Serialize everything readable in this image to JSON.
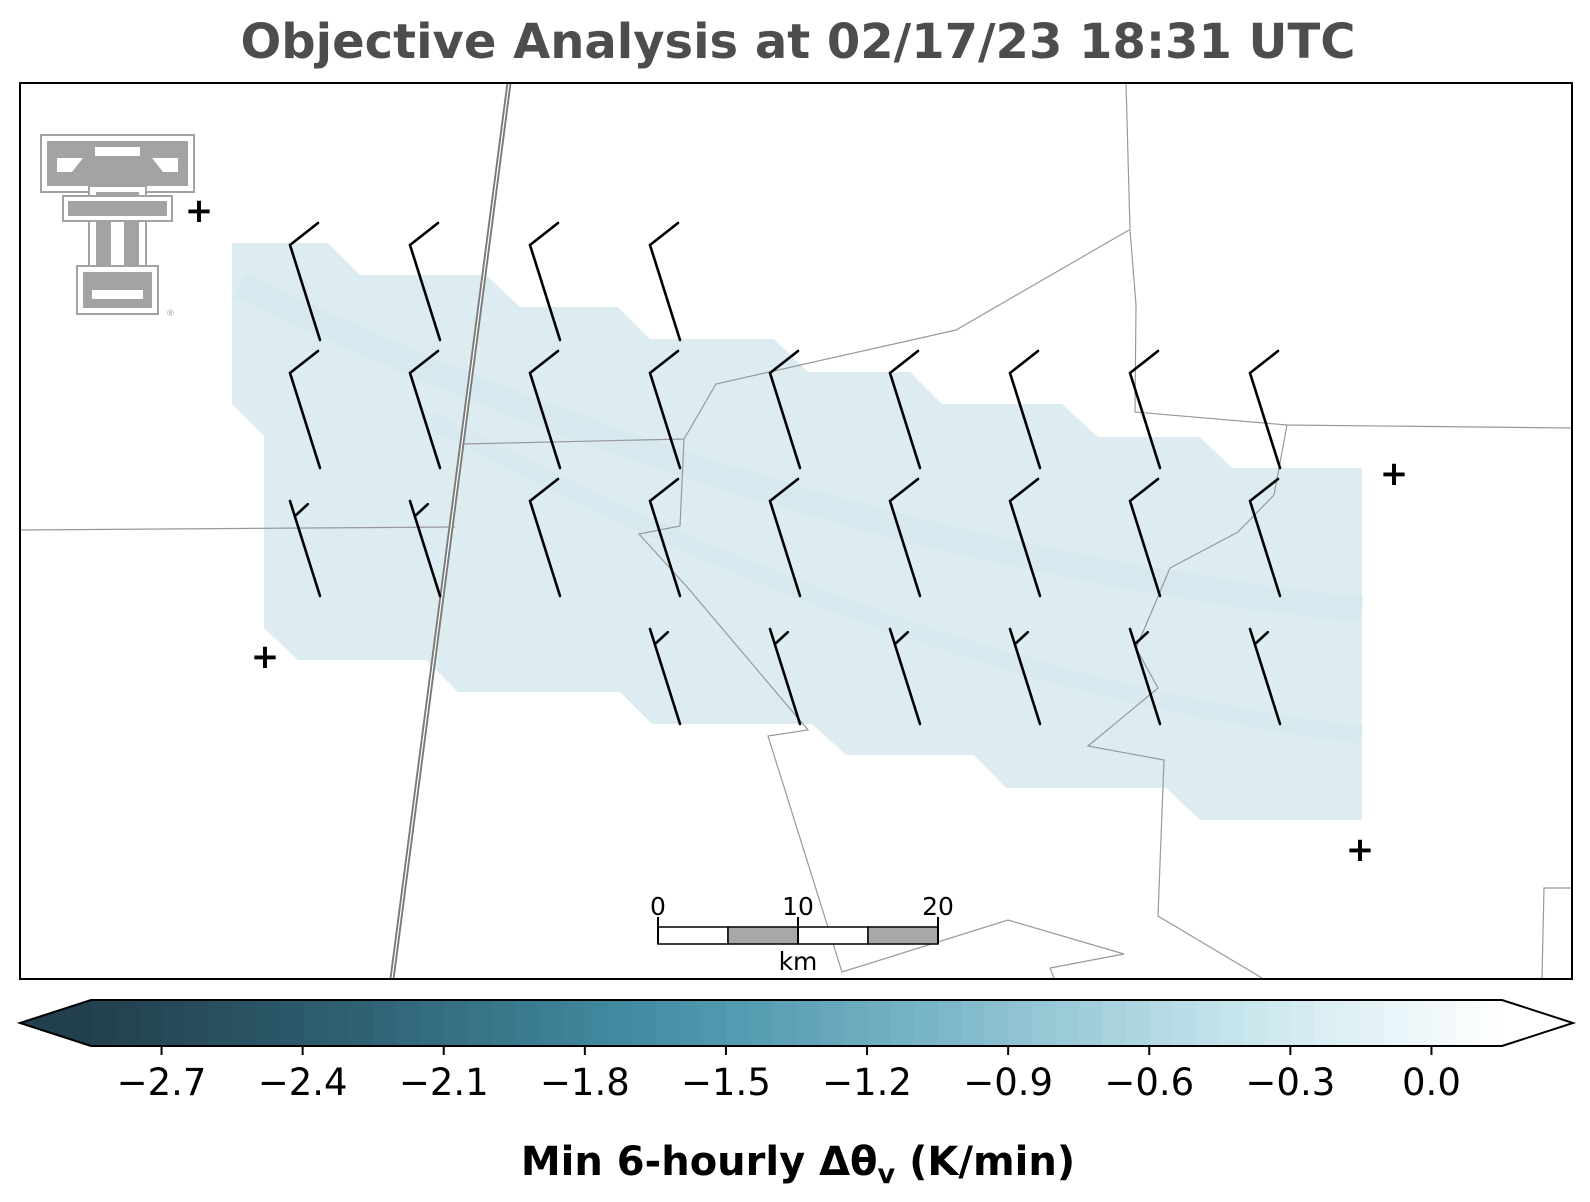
{
  "title": "Objective Analysis at 02/17/23 18:31 UTC",
  "colorbar": {
    "ticks": [
      "−2.7",
      "−2.4",
      "−2.1",
      "−1.8",
      "−1.5",
      "−1.2",
      "−0.9",
      "−0.6",
      "−0.3",
      "0.0"
    ],
    "tick_values": [
      -2.7,
      -2.4,
      -2.1,
      -1.8,
      -1.5,
      -1.2,
      -0.9,
      -0.6,
      -0.3,
      0.0
    ],
    "vmin": -2.85,
    "vmax": 0.15,
    "levels": 60,
    "extend": "both",
    "color_stops": [
      "#223f4d",
      "#2f6475",
      "#448fa6",
      "#7ab6c8",
      "#c3e3eb",
      "#ffffff"
    ],
    "label_main": "Min 6-hourly Δθ",
    "label_sub": "v",
    "label_units": " (K/min)"
  },
  "scalebar": {
    "labels": [
      "0",
      "10",
      "20"
    ],
    "unit": "km",
    "colors": [
      "#ffffff",
      "#a8a8a8"
    ]
  },
  "logo": {
    "name": "double-t-logo",
    "color": "#a3a3a3",
    "mark": "®"
  },
  "field": {
    "fill_color": "#dcecf1",
    "approx_value": -0.3
  },
  "stations": {
    "symbol": "+"
  },
  "wind_barbs": {
    "rows": [
      {
        "cols": [
          0,
          1,
          2,
          3
        ],
        "type": "full"
      },
      {
        "cols": [
          0,
          1,
          2,
          3,
          4,
          5,
          6,
          7,
          8
        ],
        "type": "full"
      },
      {
        "cols": [
          0,
          1
        ],
        "type": "half",
        "more_cols": [
          2,
          3,
          4,
          5,
          6,
          7,
          8
        ],
        "more_type": "full"
      },
      {
        "cols": [
          3,
          4,
          5,
          6,
          7,
          8
        ],
        "type": "half"
      }
    ]
  }
}
